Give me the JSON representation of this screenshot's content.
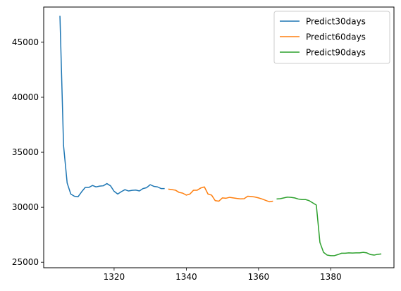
{
  "chart_data": {
    "type": "line",
    "title": "",
    "xlabel": "",
    "ylabel": "",
    "xlim": [
      1300.5,
      1397.5
    ],
    "ylim": [
      24500,
      48200
    ],
    "xticks": [
      1320,
      1340,
      1360,
      1380
    ],
    "yticks": [
      25000,
      30000,
      35000,
      40000,
      45000
    ],
    "grid": false,
    "legend": {
      "position": "upper right"
    },
    "series": [
      {
        "name": "Predict30days",
        "color": "#1f77b4",
        "x": [
          1305,
          1306,
          1307,
          1308,
          1309,
          1310,
          1311,
          1312,
          1313,
          1314,
          1315,
          1316,
          1317,
          1318,
          1319,
          1320,
          1321,
          1322,
          1323,
          1324,
          1325,
          1326,
          1327,
          1328,
          1329,
          1330,
          1331,
          1332,
          1333,
          1334
        ],
        "y": [
          47400,
          35600,
          32200,
          31200,
          31000,
          30950,
          31400,
          31800,
          31800,
          31980,
          31850,
          31920,
          31950,
          32150,
          31950,
          31450,
          31200,
          31420,
          31600,
          31480,
          31540,
          31560,
          31480,
          31700,
          31780,
          32050,
          31900,
          31850,
          31700,
          31700
        ]
      },
      {
        "name": "Predict60days",
        "color": "#ff7f0e",
        "x": [
          1335,
          1336,
          1337,
          1338,
          1339,
          1340,
          1341,
          1342,
          1343,
          1344,
          1345,
          1346,
          1347,
          1348,
          1349,
          1350,
          1351,
          1352,
          1353,
          1354,
          1355,
          1356,
          1357,
          1358,
          1359,
          1360,
          1361,
          1362,
          1363,
          1364
        ],
        "y": [
          31650,
          31600,
          31550,
          31350,
          31280,
          31100,
          31200,
          31550,
          31550,
          31750,
          31850,
          31200,
          31100,
          30600,
          30550,
          30850,
          30820,
          30900,
          30850,
          30800,
          30760,
          30780,
          31000,
          30980,
          30930,
          30850,
          30750,
          30620,
          30500,
          30550
        ]
      },
      {
        "name": "Predict90days",
        "color": "#2ca02c",
        "x": [
          1365,
          1366,
          1367,
          1368,
          1369,
          1370,
          1371,
          1372,
          1373,
          1374,
          1375,
          1376,
          1377,
          1378,
          1379,
          1380,
          1381,
          1382,
          1383,
          1384,
          1385,
          1386,
          1387,
          1388,
          1389,
          1390,
          1391,
          1392,
          1393,
          1394
        ],
        "y": [
          30750,
          30780,
          30850,
          30920,
          30900,
          30850,
          30750,
          30700,
          30700,
          30600,
          30400,
          30200,
          26800,
          25900,
          25650,
          25600,
          25600,
          25700,
          25820,
          25820,
          25850,
          25840,
          25850,
          25850,
          25900,
          25850,
          25700,
          25650,
          25720,
          25760
        ]
      }
    ]
  }
}
